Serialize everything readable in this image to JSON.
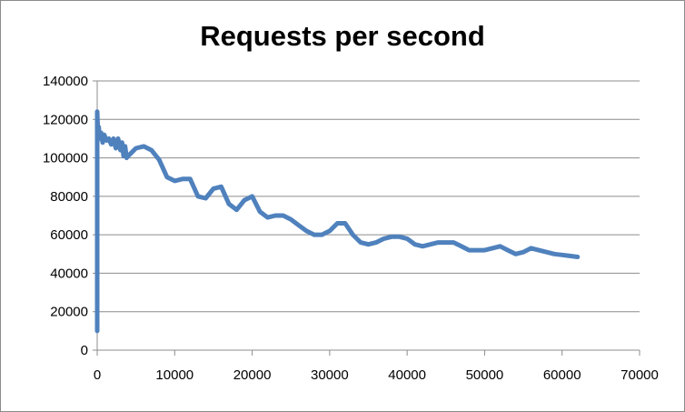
{
  "chart_data": {
    "type": "line",
    "title": "Requests per second",
    "xlabel": "",
    "ylabel": "",
    "xlim": [
      0,
      70000
    ],
    "ylim": [
      0,
      140000
    ],
    "xticks": [
      0,
      10000,
      20000,
      30000,
      40000,
      50000,
      60000,
      70000
    ],
    "yticks": [
      0,
      20000,
      40000,
      60000,
      80000,
      100000,
      120000,
      140000
    ],
    "grid": "horizontal major gridlines",
    "legend": "none",
    "series": [
      {
        "color": "#4f81bd",
        "x": [
          0,
          0,
          100,
          200,
          300,
          500,
          700,
          900,
          1200,
          1500,
          1800,
          2100,
          2400,
          2700,
          3000,
          3200,
          3400,
          3600,
          3800,
          4000,
          4500,
          5000,
          6000,
          7000,
          8000,
          9000,
          10000,
          11000,
          12000,
          13000,
          14000,
          15000,
          16000,
          17000,
          18000,
          19000,
          20000,
          21000,
          22000,
          23000,
          24000,
          25000,
          26000,
          27000,
          28000,
          29000,
          30000,
          31000,
          32000,
          33000,
          34000,
          35000,
          36000,
          37000,
          38000,
          39000,
          40000,
          41000,
          42000,
          43000,
          44000,
          45000,
          46000,
          47000,
          48000,
          49000,
          50000,
          51000,
          52000,
          53000,
          54000,
          55000,
          56000,
          57000,
          58000,
          59000,
          60000,
          61000,
          62000
        ],
        "y": [
          10000,
          124000,
          112000,
          116000,
          110000,
          113000,
          108000,
          112000,
          109000,
          110000,
          107000,
          110000,
          105000,
          110000,
          104000,
          108000,
          101000,
          106000,
          100000,
          101000,
          103000,
          105000,
          106000,
          104000,
          99000,
          90000,
          88000,
          89000,
          89000,
          80000,
          79000,
          84000,
          85000,
          76000,
          73000,
          78000,
          80000,
          72000,
          69000,
          70000,
          70000,
          68000,
          65000,
          62000,
          60000,
          60000,
          62000,
          66000,
          66000,
          60000,
          56000,
          55000,
          56000,
          58000,
          59000,
          59000,
          58000,
          55000,
          54000,
          55000,
          56000,
          56000,
          56000,
          54000,
          52000,
          52000,
          52000,
          53000,
          54000,
          52000,
          50000,
          51000,
          53000,
          52000,
          51000,
          50000,
          49500,
          49000,
          48500
        ]
      }
    ]
  }
}
